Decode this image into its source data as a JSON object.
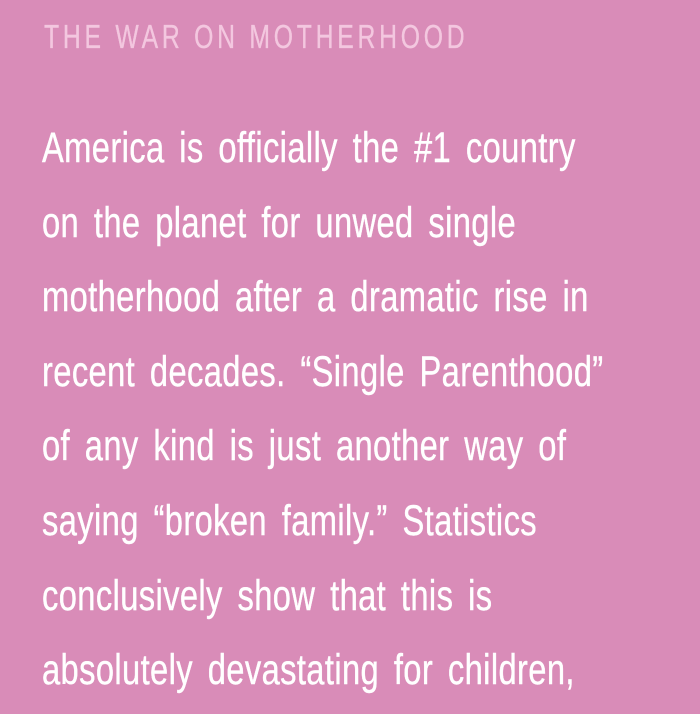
{
  "colors": {
    "background": "#d98cb8",
    "heading_text": "#f3c7df",
    "body_text": "#ffffff"
  },
  "header": {
    "label": "THE WAR ON MOTHERHOOD"
  },
  "paragraph": {
    "lines": [
      "America is officially the #1 country",
      "on the planet for unwed single",
      "motherhood after a dramatic rise in",
      "recent decades. “Single Parenthood”",
      "of any kind is just another way of",
      "saying “broken family.” Statistics",
      "conclusively show that this is",
      "absolutely devastating for children,"
    ]
  }
}
